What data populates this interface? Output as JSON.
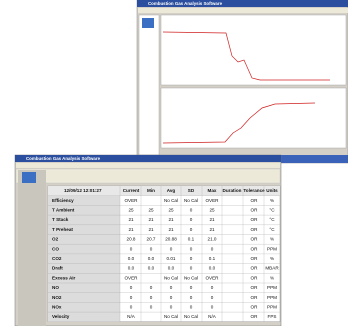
{
  "back_window": {
    "title": "Combustion Gas Analysis Software"
  },
  "front_window": {
    "title": "Combustion Gas Analysis Software",
    "table": {
      "header": [
        "12/09/12 12:01:27",
        "Current",
        "Min",
        "Avg",
        "SD",
        "Max",
        "Duration",
        "Tolerance",
        "Units"
      ],
      "rows": [
        [
          "Efficiency",
          "OVER",
          null,
          "No Cal",
          "No Cal",
          "OVER",
          null,
          "OR",
          "%"
        ],
        [
          "T Ambient",
          "25",
          "25",
          "25",
          "0",
          "25",
          null,
          "OR",
          "°C"
        ],
        [
          "T Stack",
          "21",
          "21",
          "21",
          "0",
          "21",
          null,
          "OR",
          "°C"
        ],
        [
          "T Preheat",
          "21",
          "21",
          "21",
          "0",
          "21",
          null,
          "OR",
          "°C"
        ],
        [
          "O2",
          "20.8",
          "20.7",
          "20.88",
          "0.1",
          "21.0",
          null,
          "OR",
          "%"
        ],
        [
          "CO",
          "0",
          "0",
          "0",
          "0",
          "0",
          null,
          "OR",
          "PPM"
        ],
        [
          "CO2",
          "0.0",
          "0.0",
          "0.01",
          "0",
          "0.1",
          null,
          "OR",
          "%"
        ],
        [
          "Draft",
          "0.0",
          "0.0",
          "0.0",
          "0",
          "0.0",
          null,
          "OR",
          "MBAR"
        ],
        [
          "Excess Air",
          "OVER",
          null,
          "No Cal",
          "No Cal",
          "OVER",
          null,
          "OR",
          "%"
        ],
        [
          "NO",
          "0",
          "0",
          "0",
          "0",
          "0",
          null,
          "OR",
          "PPM"
        ],
        [
          "NO2",
          "0",
          "0",
          "0",
          "0",
          "0",
          null,
          "OR",
          "PPM"
        ],
        [
          "NOx",
          "0",
          "0",
          "0",
          "0",
          "0",
          null,
          "OR",
          "PPM"
        ],
        [
          "Velocity",
          "N/A",
          null,
          "No Cal",
          "No Cal",
          "N/A",
          null,
          "OR",
          "FPS"
        ]
      ]
    }
  }
}
